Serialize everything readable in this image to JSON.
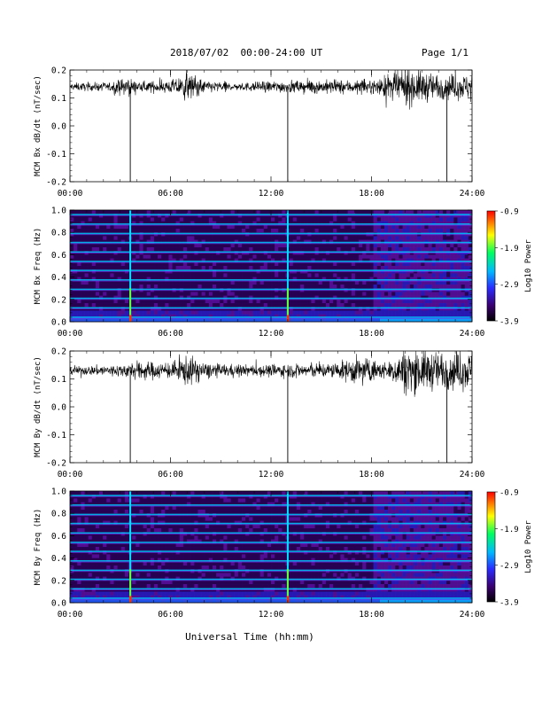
{
  "header": {
    "title": "2018/07/02  00:00-24:00 UT",
    "page": "Page 1/1"
  },
  "xaxis_label": "Universal Time (hh:mm)",
  "colors": {
    "trace": "#000000",
    "spectrogram_background": "#1a0030",
    "colorbar": [
      "#000000",
      "#3a0070",
      "#2a2cff",
      "#00b8ff",
      "#00ff60",
      "#ffff00",
      "#ff8000",
      "#ff0000"
    ]
  },
  "chart_data": [
    {
      "type": "line",
      "ylabel": "MCM Bx dB/dt (nT/sec)",
      "xlim": [
        0,
        24
      ],
      "ylim": [
        -0.2,
        0.2
      ],
      "x_ticks": [
        "00:00",
        "06:00",
        "12:00",
        "18:00",
        "24:00"
      ],
      "y_ticks": [
        "0.2",
        "0.1",
        "0.0",
        "-0.1",
        "-0.2"
      ],
      "baseline": 0.14,
      "noise_profile": [
        [
          0,
          0.012
        ],
        [
          2.3,
          0.014
        ],
        [
          3.5,
          0.03
        ],
        [
          4,
          0.016
        ],
        [
          6,
          0.02
        ],
        [
          7,
          0.045
        ],
        [
          8,
          0.02
        ],
        [
          10,
          0.012
        ],
        [
          12,
          0.018
        ],
        [
          13,
          0.02
        ],
        [
          16,
          0.022
        ],
        [
          18,
          0.02
        ],
        [
          19,
          0.04
        ],
        [
          20,
          0.06
        ],
        [
          22,
          0.04
        ],
        [
          24,
          0.04
        ]
      ],
      "spikes": [
        {
          "x": 3.6,
          "y": -0.2
        },
        {
          "x": 13.0,
          "y": -0.2
        },
        {
          "x": 22.5,
          "y": -0.2
        }
      ]
    },
    {
      "type": "heatmap",
      "ylabel": "MCM Bx Freq (Hz)",
      "xlim": [
        0,
        24
      ],
      "ylim": [
        0,
        1.0
      ],
      "x_ticks": [
        "00:00",
        "06:00",
        "12:00",
        "18:00",
        "24:00"
      ],
      "y_ticks": [
        "1.0",
        "0.8",
        "0.6",
        "0.4",
        "0.2",
        "0.0"
      ],
      "colorbar_label": "Log10 Power",
      "colorbar_ticks": [
        "-0.9",
        "-1.9",
        "-2.9",
        "-3.9"
      ],
      "clim": [
        -3.9,
        -0.9
      ],
      "harmonic_bands_hz": [
        0.04,
        0.125,
        0.21,
        0.29,
        0.375,
        0.46,
        0.54,
        0.625,
        0.71,
        0.79,
        0.875,
        0.96
      ],
      "vertical_events": [
        3.6,
        13.0
      ]
    },
    {
      "type": "line",
      "ylabel": "MCM By dB/dt (nT/sec)",
      "xlim": [
        0,
        24
      ],
      "ylim": [
        -0.2,
        0.2
      ],
      "x_ticks": [
        "00:00",
        "06:00",
        "12:00",
        "18:00",
        "24:00"
      ],
      "y_ticks": [
        "0.2",
        "0.1",
        "0.0",
        "-0.1",
        "-0.2"
      ],
      "baseline": 0.13,
      "noise_profile": [
        [
          0,
          0.012
        ],
        [
          3,
          0.02
        ],
        [
          4,
          0.03
        ],
        [
          6,
          0.025
        ],
        [
          7,
          0.05
        ],
        [
          8,
          0.025
        ],
        [
          10,
          0.018
        ],
        [
          12,
          0.02
        ],
        [
          16,
          0.025
        ],
        [
          17,
          0.045
        ],
        [
          19,
          0.025
        ],
        [
          20,
          0.07
        ],
        [
          22,
          0.06
        ],
        [
          24,
          0.06
        ]
      ],
      "spikes": [
        {
          "x": 3.6,
          "y": -0.2
        },
        {
          "x": 13.0,
          "y": -0.2
        },
        {
          "x": 22.5,
          "y": -0.2
        }
      ]
    },
    {
      "type": "heatmap",
      "ylabel": "MCM By Freq (Hz)",
      "xlim": [
        0,
        24
      ],
      "ylim": [
        0,
        1.0
      ],
      "x_ticks": [
        "00:00",
        "06:00",
        "12:00",
        "18:00",
        "24:00"
      ],
      "y_ticks": [
        "1.0",
        "0.8",
        "0.6",
        "0.4",
        "0.2",
        "0.0"
      ],
      "colorbar_label": "Log10 Power",
      "colorbar_ticks": [
        "-0.9",
        "-1.9",
        "-2.9",
        "-3.9"
      ],
      "clim": [
        -3.9,
        -0.9
      ],
      "harmonic_bands_hz": [
        0.04,
        0.125,
        0.21,
        0.29,
        0.375,
        0.46,
        0.54,
        0.625,
        0.71,
        0.79,
        0.875,
        0.96
      ],
      "vertical_events": [
        3.6,
        13.0
      ]
    }
  ]
}
